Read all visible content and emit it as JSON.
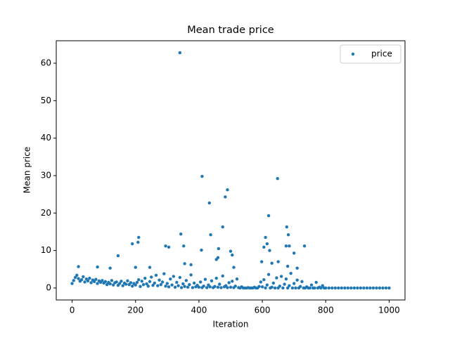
{
  "chart_data": {
    "type": "scatter",
    "title": "Mean trade price",
    "xlabel": "Iteration",
    "ylabel": "Mean price",
    "xlim": [
      -50,
      1050
    ],
    "ylim": [
      -3.2,
      66
    ],
    "xticks": [
      0,
      200,
      400,
      600,
      800,
      1000
    ],
    "yticks": [
      0,
      10,
      20,
      30,
      40,
      50,
      60
    ],
    "grid": false,
    "legend": "upper right",
    "series": [
      {
        "name": "price",
        "color": "#1f77b4",
        "x": [
          0,
          5,
          10,
          15,
          20,
          25,
          30,
          35,
          40,
          45,
          50,
          55,
          60,
          65,
          70,
          75,
          80,
          85,
          90,
          95,
          100,
          105,
          110,
          115,
          120,
          125,
          130,
          135,
          140,
          145,
          150,
          155,
          160,
          165,
          170,
          175,
          180,
          185,
          190,
          195,
          200,
          205,
          210,
          215,
          220,
          225,
          230,
          235,
          240,
          245,
          250,
          255,
          260,
          265,
          270,
          275,
          280,
          285,
          290,
          295,
          300,
          305,
          310,
          315,
          320,
          325,
          330,
          335,
          340,
          345,
          350,
          355,
          360,
          365,
          370,
          375,
          380,
          385,
          390,
          395,
          400,
          405,
          410,
          415,
          420,
          425,
          430,
          435,
          440,
          445,
          450,
          455,
          460,
          465,
          470,
          475,
          480,
          485,
          490,
          495,
          500,
          505,
          510,
          515,
          520,
          525,
          530,
          535,
          540,
          545,
          550,
          555,
          560,
          565,
          570,
          575,
          580,
          585,
          590,
          595,
          600,
          605,
          610,
          615,
          620,
          625,
          630,
          635,
          640,
          645,
          650,
          655,
          660,
          665,
          670,
          675,
          680,
          685,
          690,
          695,
          700,
          705,
          710,
          715,
          720,
          725,
          730,
          735,
          740,
          745,
          750,
          755,
          760,
          765,
          770,
          775,
          780,
          785,
          790,
          795,
          800,
          810,
          820,
          830,
          840,
          850,
          860,
          870,
          880,
          890,
          900,
          910,
          920,
          930,
          940,
          950,
          960,
          970,
          980,
          990,
          1000,
          340,
          410,
          490,
          648,
          433,
          483,
          620,
          475,
          677,
          343,
          437,
          610,
          210,
          682,
          190,
          208,
          295,
          305,
          352,
          408,
          462,
          500,
          505,
          605,
          615,
          623,
          675,
          685,
          733,
          145,
          455,
          460,
          700,
          650,
          598,
          630,
          355,
          375,
          200,
          245,
          510,
          710,
          680,
          20,
          80,
          120
        ],
        "values": [
          1.2,
          2.0,
          2.8,
          3.4,
          2.5,
          1.8,
          2.2,
          3.0,
          1.6,
          2.4,
          1.9,
          2.6,
          1.4,
          2.1,
          1.7,
          2.3,
          1.2,
          1.9,
          1.5,
          2.0,
          1.3,
          1.7,
          0.9,
          1.5,
          1.1,
          2.0,
          0.8,
          1.4,
          1.6,
          0.7,
          1.2,
          1.8,
          0.6,
          1.3,
          1.0,
          1.9,
          0.9,
          1.4,
          0.5,
          1.2,
          0.8,
          1.5,
          2.2,
          0.4,
          1.8,
          0.9,
          2.6,
          1.1,
          0.5,
          1.7,
          2.9,
          0.7,
          1.3,
          3.4,
          0.6,
          2.1,
          0.9,
          1.6,
          3.8,
          0.5,
          1.2,
          0.3,
          2.4,
          0.8,
          3.1,
          0.2,
          1.5,
          0.6,
          2.8,
          0.1,
          1.1,
          0.4,
          2.0,
          0.2,
          0.9,
          3.5,
          0.1,
          1.3,
          0.3,
          0.7,
          0.2,
          1.6,
          0.1,
          0.5,
          2.3,
          0.1,
          0.8,
          0.3,
          1.9,
          0.1,
          0.4,
          2.6,
          0.2,
          1.0,
          0.1,
          3.2,
          0.3,
          0.6,
          0.1,
          1.4,
          0.2,
          1.8,
          0.1,
          0.5,
          2.4,
          0.1,
          0,
          0.3,
          0,
          0,
          0,
          0.1,
          0,
          0,
          0,
          0.2,
          0,
          0,
          0.4,
          1.6,
          0.3,
          2.2,
          0,
          0.8,
          3.6,
          0,
          0.2,
          1.3,
          0,
          2.7,
          0,
          0.5,
          3.1,
          0,
          1.0,
          2.4,
          0,
          0.6,
          3.9,
          0,
          1.2,
          0,
          2.1,
          0,
          0.4,
          1.7,
          0,
          0,
          0.3,
          0,
          0,
          0.8,
          0,
          0,
          1.5,
          0,
          0.2,
          0,
          0.6,
          0,
          0,
          0,
          0,
          0,
          0,
          0,
          0,
          0,
          0,
          0,
          0,
          0,
          0,
          0,
          0,
          0,
          0,
          0,
          0,
          0,
          0,
          62.8,
          29.8,
          26.2,
          29.2,
          22.7,
          24.3,
          19.3,
          16.3,
          16.3,
          14.4,
          14.2,
          13.5,
          13.5,
          14.2,
          11.8,
          12.2,
          11.2,
          10.9,
          11.2,
          10.1,
          10.5,
          9.8,
          8.8,
          10.9,
          11.8,
          10.0,
          11.2,
          11.2,
          11.2,
          8.6,
          7.6,
          8.1,
          9.3,
          7.0,
          7.0,
          6.6,
          6.5,
          6.2,
          5.5,
          5.5,
          5.5,
          5.3,
          5.8,
          5.7,
          5.6,
          5.3
        ]
      }
    ]
  }
}
